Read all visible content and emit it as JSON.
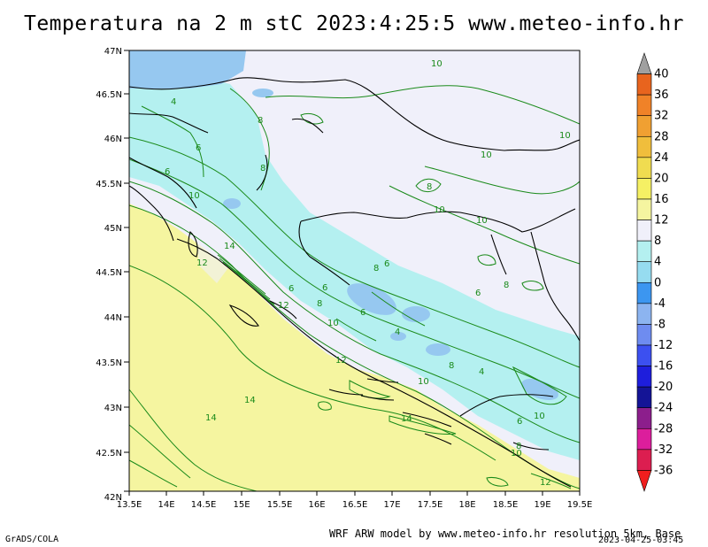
{
  "title": "Temperatura na 2 m stC 2023:4:25:5 www.meteo-info.hr",
  "footer": {
    "credit": "WRF ARW model by www.meteo-info.hr resolution 5km, Base",
    "date": "2023-04-25-03:45",
    "software": "GrADS/COLA"
  },
  "axes": {
    "x_ticks": [
      "13.5E",
      "14E",
      "14.5E",
      "15E",
      "15.5E",
      "16E",
      "16.5E",
      "17E",
      "17.5E",
      "18E",
      "18.5E",
      "19E",
      "19.5E"
    ],
    "y_ticks": [
      "47N",
      "46.5N",
      "46N",
      "45.5N",
      "45N",
      "44.5N",
      "44N",
      "43.5N",
      "43N",
      "42.5N",
      "42N"
    ],
    "lon_range": [
      13.5,
      19.5
    ],
    "lat_range": [
      42,
      47
    ]
  },
  "colorbar": {
    "labels": [
      "40",
      "36",
      "32",
      "28",
      "24",
      "20",
      "16",
      "12",
      "8",
      "4",
      "0",
      "-4",
      "-8",
      "-12",
      "-16",
      "-20",
      "-24",
      "-28",
      "-32",
      "-36"
    ],
    "colors": [
      "#a0a0a0",
      "#e8641e",
      "#f08228",
      "#f0a032",
      "#f0be3c",
      "#f0dc50",
      "#f5f064",
      "#f5f5a0",
      "#f0f0fa",
      "#b4f0f0",
      "#96dcf0",
      "#3c96f0",
      "#8cb4f0",
      "#6e8cf0",
      "#3c50f0",
      "#1e1edc",
      "#141496",
      "#8c1e8c",
      "#dc1e9c",
      "#dc1e50",
      "#f01e1e"
    ]
  },
  "contour_labels": [
    "10",
    "10",
    "10",
    "10",
    "10",
    "10",
    "10",
    "10",
    "10",
    "10",
    "12",
    "12",
    "12",
    "12",
    "14",
    "14",
    "14",
    "14",
    "8",
    "8",
    "8",
    "8",
    "8",
    "8",
    "8",
    "8",
    "6",
    "6",
    "6",
    "6",
    "6",
    "6",
    "6",
    "6",
    "4",
    "4",
    "4"
  ]
}
